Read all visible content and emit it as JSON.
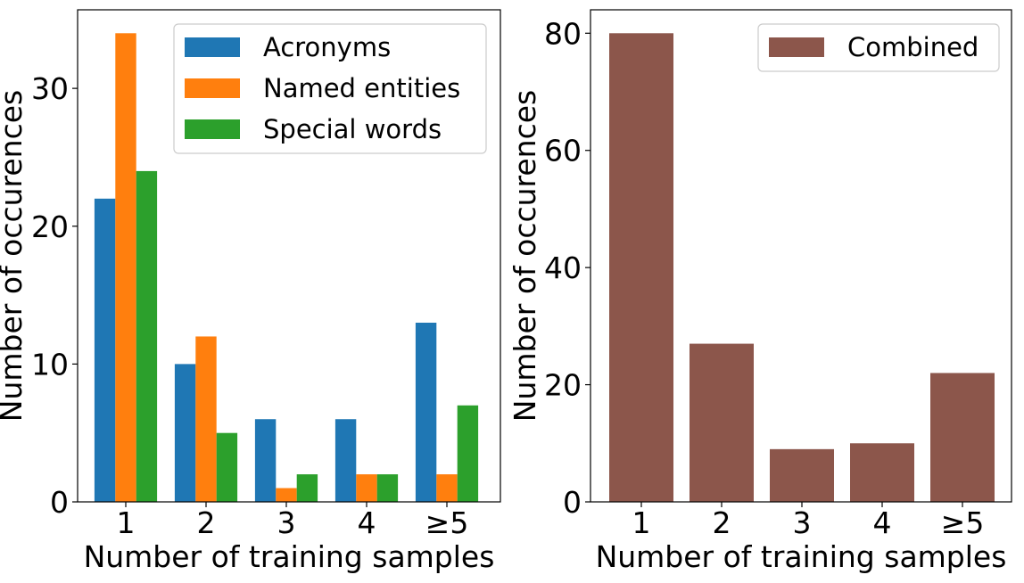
{
  "chart_data": [
    {
      "type": "bar",
      "categories": [
        "1",
        "2",
        "3",
        "4",
        "≥5"
      ],
      "series": [
        {
          "name": "Acronyms",
          "values": [
            22,
            10,
            6,
            6,
            13
          ],
          "color": "#1f77b4"
        },
        {
          "name": "Named entities",
          "values": [
            34,
            12,
            1,
            2,
            2
          ],
          "color": "#ff7f0e"
        },
        {
          "name": "Special words",
          "values": [
            24,
            5,
            2,
            2,
            7
          ],
          "color": "#2ca02c"
        }
      ],
      "xlabel": "Number of training samples",
      "ylabel": "Number of occurences",
      "ylim": [
        0,
        35.7
      ],
      "yticks": [
        0,
        10,
        20,
        30
      ],
      "grid": false,
      "legend": "top-right"
    },
    {
      "type": "bar",
      "categories": [
        "1",
        "2",
        "3",
        "4",
        "≥5"
      ],
      "series": [
        {
          "name": "Combined",
          "values": [
            80,
            27,
            9,
            10,
            22
          ],
          "color": "#8c564b"
        }
      ],
      "xlabel": "Number of training samples",
      "ylabel": "Number of occurences",
      "ylim": [
        0,
        84
      ],
      "yticks": [
        0,
        20,
        40,
        60,
        80
      ],
      "grid": false,
      "legend": "top-right"
    }
  ]
}
